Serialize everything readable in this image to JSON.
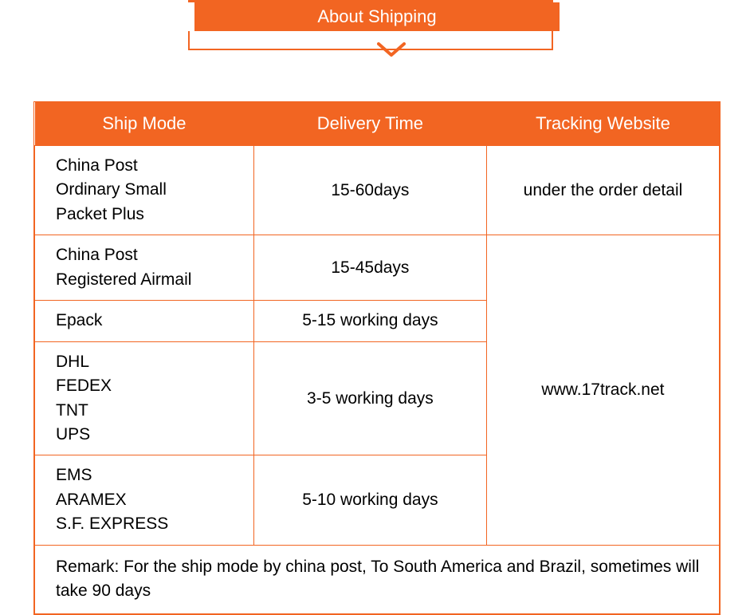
{
  "banner": {
    "title": "About Shipping",
    "bg_color": "#f26522",
    "text_color": "#ffffff"
  },
  "table": {
    "border_color": "#f26522",
    "header_bg": "#f26522",
    "header_text_color": "#ffffff",
    "columns": [
      "Ship Mode",
      "Delivery Time",
      "Tracking Website"
    ],
    "rows": [
      {
        "ship_mode": "China Post\nOrdinary Small\nPacket Plus",
        "delivery_time": "15-60days",
        "tracking": "under the order detail",
        "tracking_rowspan": 1
      },
      {
        "ship_mode": "China Post\nRegistered Airmail",
        "delivery_time": "15-45days",
        "tracking": "www.17track.net",
        "tracking_rowspan": 4
      },
      {
        "ship_mode": "Epack",
        "delivery_time": "5-15 working days"
      },
      {
        "ship_mode": "DHL\nFEDEX\nTNT\nUPS",
        "delivery_time": "3-5 working days"
      },
      {
        "ship_mode": "EMS\nARAMEX\nS.F. EXPRESS",
        "delivery_time": "5-10 working days"
      }
    ],
    "remark": "Remark: For the ship mode by china post, To South America and Brazil, sometimes will take 90 days"
  }
}
